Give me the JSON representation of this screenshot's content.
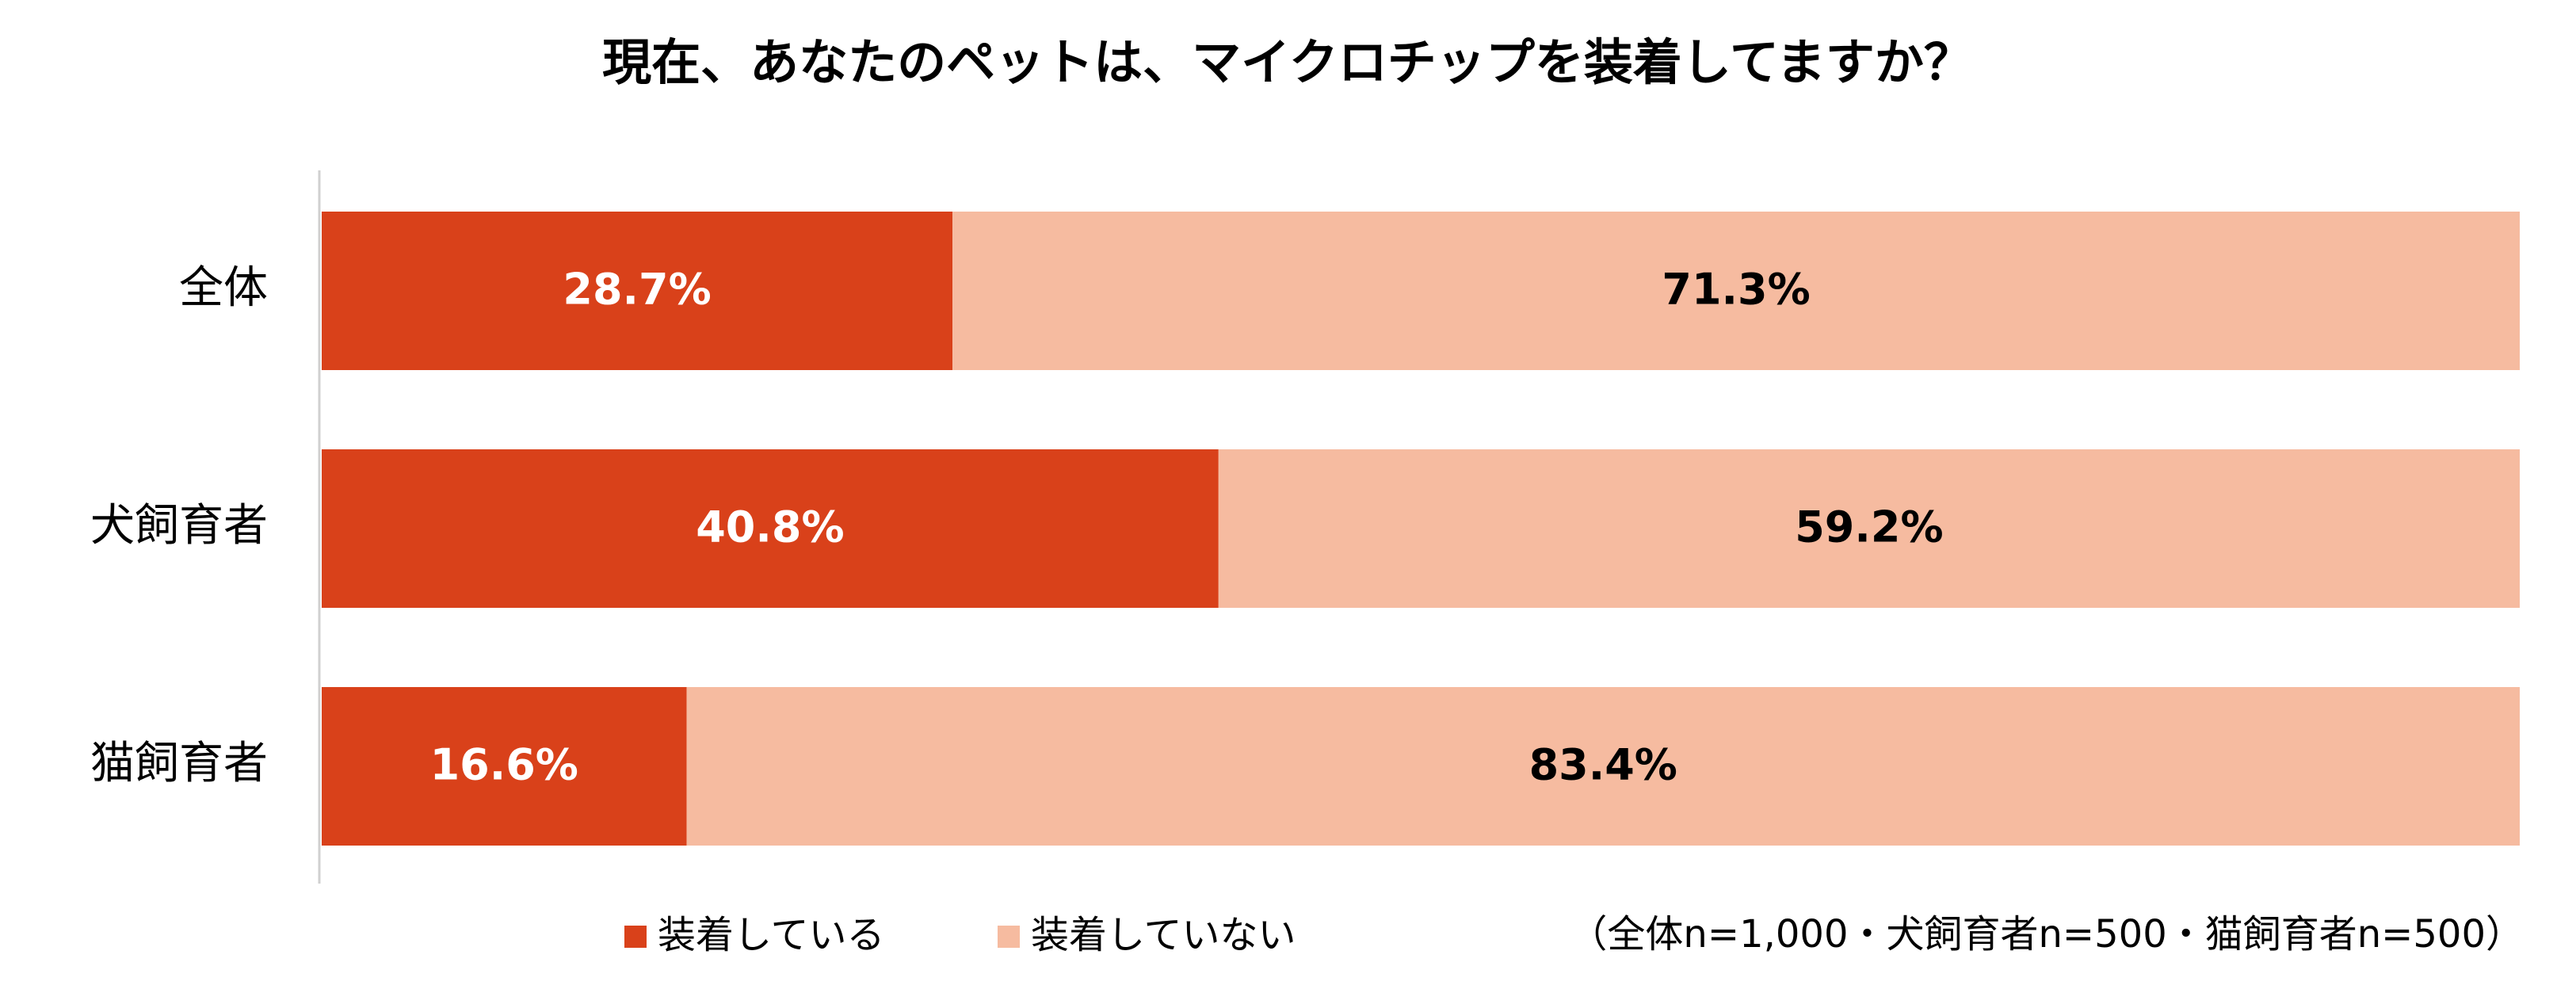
{
  "chart_data": {
    "type": "stacked-bar-horizontal",
    "title": "現在、あなたのペットは、マイクロチップを装着してますか？",
    "categories": [
      "全体",
      "犬飼育者",
      "猫飼育者"
    ],
    "series": [
      {
        "name": "装着している",
        "color": "#D9411A",
        "values": [
          28.7,
          40.8,
          16.6
        ],
        "value_labels": [
          "28.7%",
          "40.8%",
          "16.6%"
        ]
      },
      {
        "name": "装着していない",
        "color": "#F6BBA0",
        "values": [
          71.3,
          59.2,
          83.4
        ],
        "value_labels": [
          "71.3%",
          "59.2%",
          "83.4%"
        ]
      }
    ],
    "xlim": [
      0,
      100
    ],
    "annotation": "（全体n=1,000・犬飼育者n=500・猫飼育者n=500）"
  }
}
